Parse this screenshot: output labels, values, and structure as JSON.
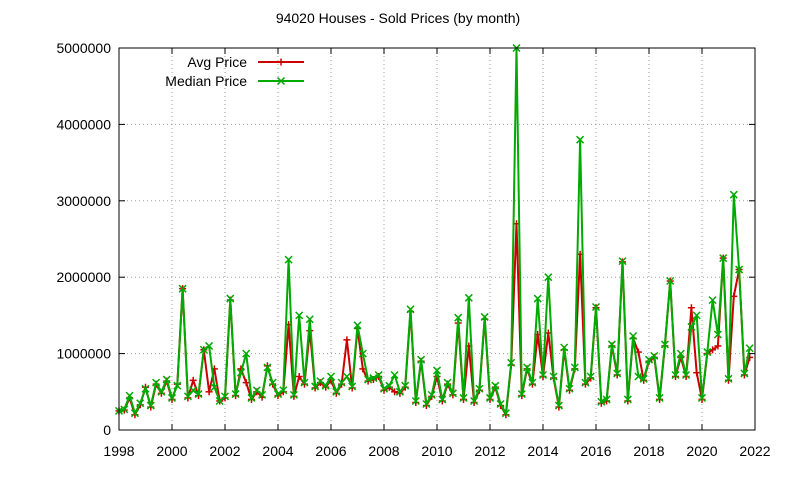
{
  "chart_data": {
    "type": "line",
    "title": "94020 Houses - Sold Prices (by month)",
    "xlabel": "",
    "ylabel": "",
    "xlim": [
      1998,
      2022
    ],
    "ylim": [
      0,
      5000000
    ],
    "x_ticks": [
      1998,
      2000,
      2002,
      2004,
      2006,
      2008,
      2010,
      2012,
      2014,
      2016,
      2018,
      2020,
      2022
    ],
    "x_tick_labels": [
      "1998",
      "2000",
      "2002",
      "2004",
      "2006",
      "2008",
      "2010",
      "2012",
      "2014",
      "2016",
      "2018",
      "2020",
      "2022"
    ],
    "y_ticks": [
      0,
      1000000,
      2000000,
      3000000,
      4000000,
      5000000
    ],
    "y_tick_labels": [
      "0",
      "1000000",
      "2000000",
      "3000000",
      "4000000",
      "5000000"
    ],
    "grid": true,
    "legend_position": "top-left",
    "series": [
      {
        "name": "Avg Price",
        "color": "#cc0000",
        "marker": "plus",
        "points": [
          [
            1998.0,
            250000
          ],
          [
            1998.2,
            260000
          ],
          [
            1998.4,
            420000
          ],
          [
            1998.6,
            200000
          ],
          [
            1998.8,
            330000
          ],
          [
            1999.0,
            560000
          ],
          [
            1999.2,
            300000
          ],
          [
            1999.4,
            600000
          ],
          [
            1999.6,
            480000
          ],
          [
            1999.8,
            640000
          ],
          [
            2000.0,
            400000
          ],
          [
            2000.2,
            600000
          ],
          [
            2000.4,
            1850000
          ],
          [
            2000.6,
            420000
          ],
          [
            2000.8,
            650000
          ],
          [
            2001.0,
            450000
          ],
          [
            2001.2,
            1050000
          ],
          [
            2001.4,
            500000
          ],
          [
            2001.6,
            800000
          ],
          [
            2001.8,
            380000
          ],
          [
            2002.0,
            420000
          ],
          [
            2002.2,
            1700000
          ],
          [
            2002.4,
            450000
          ],
          [
            2002.6,
            800000
          ],
          [
            2002.8,
            620000
          ],
          [
            2003.0,
            400000
          ],
          [
            2003.2,
            500000
          ],
          [
            2003.4,
            430000
          ],
          [
            2003.6,
            840000
          ],
          [
            2003.8,
            600000
          ],
          [
            2004.0,
            450000
          ],
          [
            2004.2,
            500000
          ],
          [
            2004.4,
            1380000
          ],
          [
            2004.6,
            440000
          ],
          [
            2004.8,
            700000
          ],
          [
            2005.0,
            600000
          ],
          [
            2005.2,
            1300000
          ],
          [
            2005.4,
            550000
          ],
          [
            2005.6,
            620000
          ],
          [
            2005.8,
            560000
          ],
          [
            2006.0,
            650000
          ],
          [
            2006.2,
            480000
          ],
          [
            2006.4,
            600000
          ],
          [
            2006.6,
            1180000
          ],
          [
            2006.8,
            550000
          ],
          [
            2007.0,
            1330000
          ],
          [
            2007.2,
            800000
          ],
          [
            2007.4,
            640000
          ],
          [
            2007.6,
            660000
          ],
          [
            2007.8,
            700000
          ],
          [
            2008.0,
            520000
          ],
          [
            2008.2,
            560000
          ],
          [
            2008.4,
            500000
          ],
          [
            2008.6,
            480000
          ],
          [
            2008.8,
            560000
          ],
          [
            2009.0,
            1550000
          ],
          [
            2009.2,
            360000
          ],
          [
            2009.4,
            900000
          ],
          [
            2009.6,
            320000
          ],
          [
            2009.8,
            440000
          ],
          [
            2010.0,
            700000
          ],
          [
            2010.2,
            380000
          ],
          [
            2010.4,
            600000
          ],
          [
            2010.6,
            460000
          ],
          [
            2010.8,
            1400000
          ],
          [
            2011.0,
            400000
          ],
          [
            2011.2,
            1100000
          ],
          [
            2011.4,
            360000
          ],
          [
            2011.6,
            520000
          ],
          [
            2011.8,
            1450000
          ],
          [
            2012.0,
            400000
          ],
          [
            2012.2,
            560000
          ],
          [
            2012.4,
            320000
          ],
          [
            2012.6,
            200000
          ],
          [
            2012.8,
            850000
          ],
          [
            2013.0,
            2700000
          ],
          [
            2013.2,
            450000
          ],
          [
            2013.4,
            800000
          ],
          [
            2013.6,
            600000
          ],
          [
            2013.8,
            1250000
          ],
          [
            2014.0,
            700000
          ],
          [
            2014.2,
            1270000
          ],
          [
            2014.4,
            680000
          ],
          [
            2014.6,
            300000
          ],
          [
            2014.8,
            1050000
          ],
          [
            2015.0,
            520000
          ],
          [
            2015.2,
            800000
          ],
          [
            2015.4,
            2300000
          ],
          [
            2015.6,
            600000
          ],
          [
            2015.8,
            680000
          ],
          [
            2016.0,
            1600000
          ],
          [
            2016.2,
            350000
          ],
          [
            2016.4,
            380000
          ],
          [
            2016.6,
            1100000
          ],
          [
            2016.8,
            720000
          ],
          [
            2017.0,
            2200000
          ],
          [
            2017.2,
            380000
          ],
          [
            2017.4,
            1200000
          ],
          [
            2017.6,
            1020000
          ],
          [
            2017.8,
            650000
          ],
          [
            2018.0,
            900000
          ],
          [
            2018.2,
            950000
          ],
          [
            2018.4,
            400000
          ],
          [
            2018.6,
            1100000
          ],
          [
            2018.8,
            1950000
          ],
          [
            2019.0,
            700000
          ],
          [
            2019.2,
            950000
          ],
          [
            2019.4,
            700000
          ],
          [
            2019.6,
            1600000
          ],
          [
            2019.8,
            750000
          ],
          [
            2020.0,
            400000
          ],
          [
            2020.2,
            1000000
          ],
          [
            2020.4,
            1050000
          ],
          [
            2020.6,
            1100000
          ],
          [
            2020.8,
            2250000
          ],
          [
            2021.0,
            650000
          ],
          [
            2021.2,
            1750000
          ],
          [
            2021.4,
            2100000
          ],
          [
            2021.6,
            720000
          ],
          [
            2021.8,
            950000
          ]
        ]
      },
      {
        "name": "Median Price",
        "color": "#00aa00",
        "marker": "x",
        "points": [
          [
            1998.0,
            250000
          ],
          [
            1998.2,
            270000
          ],
          [
            1998.4,
            450000
          ],
          [
            1998.6,
            220000
          ],
          [
            1998.8,
            350000
          ],
          [
            1999.0,
            540000
          ],
          [
            1999.2,
            320000
          ],
          [
            1999.4,
            620000
          ],
          [
            1999.6,
            500000
          ],
          [
            1999.8,
            660000
          ],
          [
            2000.0,
            420000
          ],
          [
            2000.2,
            580000
          ],
          [
            2000.4,
            1850000
          ],
          [
            2000.6,
            440000
          ],
          [
            2000.8,
            520000
          ],
          [
            2001.0,
            470000
          ],
          [
            2001.2,
            1050000
          ],
          [
            2001.4,
            1100000
          ],
          [
            2001.6,
            560000
          ],
          [
            2001.8,
            380000
          ],
          [
            2002.0,
            440000
          ],
          [
            2002.2,
            1720000
          ],
          [
            2002.4,
            470000
          ],
          [
            2002.6,
            750000
          ],
          [
            2002.8,
            1000000
          ],
          [
            2003.0,
            420000
          ],
          [
            2003.2,
            520000
          ],
          [
            2003.4,
            460000
          ],
          [
            2003.6,
            820000
          ],
          [
            2003.8,
            620000
          ],
          [
            2004.0,
            470000
          ],
          [
            2004.2,
            520000
          ],
          [
            2004.4,
            2230000
          ],
          [
            2004.6,
            460000
          ],
          [
            2004.8,
            1500000
          ],
          [
            2005.0,
            620000
          ],
          [
            2005.2,
            1450000
          ],
          [
            2005.4,
            570000
          ],
          [
            2005.6,
            640000
          ],
          [
            2005.8,
            580000
          ],
          [
            2006.0,
            700000
          ],
          [
            2006.2,
            500000
          ],
          [
            2006.4,
            620000
          ],
          [
            2006.6,
            700000
          ],
          [
            2006.8,
            570000
          ],
          [
            2007.0,
            1370000
          ],
          [
            2007.2,
            1000000
          ],
          [
            2007.4,
            660000
          ],
          [
            2007.6,
            680000
          ],
          [
            2007.8,
            720000
          ],
          [
            2008.0,
            540000
          ],
          [
            2008.2,
            580000
          ],
          [
            2008.4,
            720000
          ],
          [
            2008.6,
            500000
          ],
          [
            2008.8,
            580000
          ],
          [
            2009.0,
            1580000
          ],
          [
            2009.2,
            380000
          ],
          [
            2009.4,
            920000
          ],
          [
            2009.6,
            340000
          ],
          [
            2009.8,
            460000
          ],
          [
            2010.0,
            780000
          ],
          [
            2010.2,
            400000
          ],
          [
            2010.4,
            620000
          ],
          [
            2010.6,
            480000
          ],
          [
            2010.8,
            1470000
          ],
          [
            2011.0,
            420000
          ],
          [
            2011.2,
            1730000
          ],
          [
            2011.4,
            380000
          ],
          [
            2011.6,
            540000
          ],
          [
            2011.8,
            1480000
          ],
          [
            2012.0,
            420000
          ],
          [
            2012.2,
            580000
          ],
          [
            2012.4,
            340000
          ],
          [
            2012.6,
            220000
          ],
          [
            2012.8,
            880000
          ],
          [
            2013.0,
            5000000
          ],
          [
            2013.2,
            470000
          ],
          [
            2013.4,
            820000
          ],
          [
            2013.6,
            620000
          ],
          [
            2013.8,
            1720000
          ],
          [
            2014.0,
            720000
          ],
          [
            2014.2,
            2000000
          ],
          [
            2014.4,
            700000
          ],
          [
            2014.6,
            320000
          ],
          [
            2014.8,
            1080000
          ],
          [
            2015.0,
            540000
          ],
          [
            2015.2,
            820000
          ],
          [
            2015.4,
            3800000
          ],
          [
            2015.6,
            620000
          ],
          [
            2015.8,
            700000
          ],
          [
            2016.0,
            1610000
          ],
          [
            2016.2,
            370000
          ],
          [
            2016.4,
            400000
          ],
          [
            2016.6,
            1120000
          ],
          [
            2016.8,
            740000
          ],
          [
            2017.0,
            2210000
          ],
          [
            2017.2,
            400000
          ],
          [
            2017.4,
            1230000
          ],
          [
            2017.6,
            700000
          ],
          [
            2017.8,
            670000
          ],
          [
            2018.0,
            920000
          ],
          [
            2018.2,
            970000
          ],
          [
            2018.4,
            420000
          ],
          [
            2018.6,
            1120000
          ],
          [
            2018.8,
            1950000
          ],
          [
            2019.0,
            720000
          ],
          [
            2019.2,
            1000000
          ],
          [
            2019.4,
            720000
          ],
          [
            2019.6,
            1350000
          ],
          [
            2019.8,
            1500000
          ],
          [
            2020.0,
            420000
          ],
          [
            2020.2,
            1020000
          ],
          [
            2020.4,
            1700000
          ],
          [
            2020.6,
            1250000
          ],
          [
            2020.8,
            2250000
          ],
          [
            2021.0,
            670000
          ],
          [
            2021.2,
            3080000
          ],
          [
            2021.4,
            2100000
          ],
          [
            2021.6,
            740000
          ],
          [
            2021.8,
            1070000
          ]
        ]
      }
    ]
  }
}
